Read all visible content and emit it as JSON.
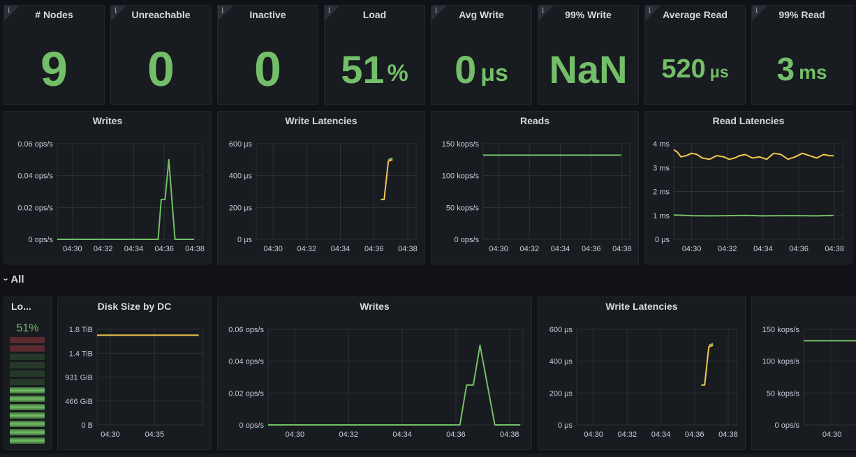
{
  "stats": [
    {
      "title": "# Nodes",
      "value": "9",
      "unit": ""
    },
    {
      "title": "Unreachable",
      "value": "0",
      "unit": ""
    },
    {
      "title": "Inactive",
      "value": "0",
      "unit": ""
    },
    {
      "title": "Load",
      "value": "51",
      "unit": "%"
    },
    {
      "title": "Avg Write",
      "value": "0",
      "unit": "μs"
    },
    {
      "title": "99% Write",
      "value": "NaN",
      "unit": ""
    },
    {
      "title": "Average Read",
      "value": "520",
      "unit": "μs"
    },
    {
      "title": "99% Read",
      "value": "3",
      "unit": "ms"
    }
  ],
  "info_glyph": "i",
  "row": {
    "label": "All",
    "chevron": "›"
  },
  "gauge": {
    "title": "Lo...",
    "value_text": "51%",
    "value": 0.51,
    "segments": 13
  },
  "colors": {
    "green": "#73bf69",
    "yellow": "#f2c94c",
    "red": "#5a2a30",
    "panel": "#181b1f",
    "grid": "#2c3037"
  },
  "chart_data": [
    {
      "id": "writes_top",
      "type": "line",
      "title": "Writes",
      "xlim": [
        0,
        9.5
      ],
      "ylim": [
        0,
        0.06
      ],
      "xticks": [
        {
          "v": 1,
          "l": "04:30"
        },
        {
          "v": 3,
          "l": "04:32"
        },
        {
          "v": 5,
          "l": "04:34"
        },
        {
          "v": 7,
          "l": "04:36"
        },
        {
          "v": 9,
          "l": "04:38"
        }
      ],
      "yticks": [
        {
          "v": 0,
          "l": "0 ops/s"
        },
        {
          "v": 0.02,
          "l": "0.02 ops/s"
        },
        {
          "v": 0.04,
          "l": "0.04 ops/s"
        },
        {
          "v": 0.06,
          "l": "0.06 ops/s"
        }
      ],
      "series": [
        {
          "color": "#73bf69",
          "x": [
            0,
            6.6,
            6.8,
            7.05,
            7.3,
            7.7,
            8.1,
            8.95
          ],
          "y": [
            0,
            0,
            0.025,
            0.025,
            0.05,
            0,
            0,
            0
          ]
        }
      ]
    },
    {
      "id": "write_lat_top",
      "type": "line",
      "title": "Write Latencies",
      "xlim": [
        0,
        9.5
      ],
      "ylim": [
        0,
        600
      ],
      "xticks": [
        {
          "v": 1,
          "l": "04:30"
        },
        {
          "v": 3,
          "l": "04:32"
        },
        {
          "v": 5,
          "l": "04:34"
        },
        {
          "v": 7,
          "l": "04:36"
        },
        {
          "v": 9,
          "l": "04:38"
        }
      ],
      "yticks": [
        {
          "v": 0,
          "l": "0 μs"
        },
        {
          "v": 200,
          "l": "200 μs"
        },
        {
          "v": 400,
          "l": "400 μs"
        },
        {
          "v": 600,
          "l": "600 μs"
        }
      ],
      "series": [
        {
          "color": "#f2c94c",
          "x": [
            7.4,
            7.6,
            7.85,
            8.1
          ],
          "y": [
            250,
            250,
            490,
            500
          ]
        },
        {
          "color": "#73bf69",
          "x": [
            7.85,
            8.1
          ],
          "y": [
            500,
            510
          ]
        }
      ]
    },
    {
      "id": "reads_top",
      "type": "line",
      "title": "Reads",
      "xlim": [
        0,
        9.5
      ],
      "ylim": [
        0,
        150
      ],
      "xticks": [
        {
          "v": 1,
          "l": "04:30"
        },
        {
          "v": 3,
          "l": "04:32"
        },
        {
          "v": 5,
          "l": "04:34"
        },
        {
          "v": 7,
          "l": "04:36"
        },
        {
          "v": 9,
          "l": "04:38"
        }
      ],
      "yticks": [
        {
          "v": 0,
          "l": "0 ops/s"
        },
        {
          "v": 50,
          "l": "50 kops/s"
        },
        {
          "v": 100,
          "l": "100 kops/s"
        },
        {
          "v": 150,
          "l": "150 kops/s"
        }
      ],
      "series": [
        {
          "color": "#73bf69",
          "x": [
            0,
            8.95
          ],
          "y": [
            132,
            132
          ]
        }
      ]
    },
    {
      "id": "read_lat_top",
      "type": "line",
      "title": "Read Latencies",
      "xlim": [
        0,
        9.5
      ],
      "ylim": [
        0,
        4
      ],
      "xticks": [
        {
          "v": 1,
          "l": "04:30"
        },
        {
          "v": 3,
          "l": "04:32"
        },
        {
          "v": 5,
          "l": "04:34"
        },
        {
          "v": 7,
          "l": "04:36"
        },
        {
          "v": 9,
          "l": "04:38"
        }
      ],
      "yticks": [
        {
          "v": 0,
          "l": "0 μs"
        },
        {
          "v": 1,
          "l": "1 ms"
        },
        {
          "v": 2,
          "l": "2 ms"
        },
        {
          "v": 3,
          "l": "3 ms"
        },
        {
          "v": 4,
          "l": "4 ms"
        }
      ],
      "series": [
        {
          "color": "#f2c94c",
          "x": [
            0,
            0.2,
            0.4,
            0.7,
            1,
            1.3,
            1.6,
            2,
            2.4,
            2.8,
            3.1,
            3.4,
            3.7,
            4,
            4.4,
            4.8,
            5.2,
            5.6,
            6,
            6.4,
            6.8,
            7.2,
            7.6,
            8,
            8.4,
            8.7,
            8.95
          ],
          "y": [
            3.75,
            3.65,
            3.45,
            3.5,
            3.6,
            3.55,
            3.4,
            3.35,
            3.5,
            3.45,
            3.35,
            3.4,
            3.5,
            3.55,
            3.4,
            3.45,
            3.35,
            3.6,
            3.55,
            3.35,
            3.45,
            3.6,
            3.5,
            3.4,
            3.55,
            3.5,
            3.5
          ]
        },
        {
          "color": "#73bf69",
          "x": [
            0,
            1,
            2,
            3,
            4,
            5,
            6,
            7,
            8,
            8.95
          ],
          "y": [
            1.02,
            0.99,
            0.98,
            0.99,
            1.0,
            0.98,
            0.99,
            0.99,
            0.98,
            1.0
          ]
        }
      ]
    },
    {
      "id": "disk",
      "type": "line",
      "title": "Disk Size by DC",
      "xlim": [
        0,
        12
      ],
      "ylim": [
        0,
        1.8
      ],
      "xticks": [
        {
          "v": 1.5,
          "l": "04:30"
        },
        {
          "v": 6.5,
          "l": "04:35"
        }
      ],
      "yticks": [
        {
          "v": 0,
          "l": "0 B"
        },
        {
          "v": 0.45,
          "l": "466 GiB"
        },
        {
          "v": 0.9,
          "l": "931 GiB"
        },
        {
          "v": 1.35,
          "l": "1.4 TiB"
        },
        {
          "v": 1.8,
          "l": "1.8 TiB"
        }
      ],
      "series": [
        {
          "color": "#f2c94c",
          "x": [
            0,
            11.5
          ],
          "y": [
            1.69,
            1.69
          ]
        }
      ]
    },
    {
      "id": "writes_bottom",
      "type": "line",
      "title": "Writes",
      "xlim": [
        0,
        9.5
      ],
      "ylim": [
        0,
        0.06
      ],
      "xticks": [
        {
          "v": 1,
          "l": "04:30"
        },
        {
          "v": 3,
          "l": "04:32"
        },
        {
          "v": 5,
          "l": "04:34"
        },
        {
          "v": 7,
          "l": "04:36"
        },
        {
          "v": 9,
          "l": "04:38"
        }
      ],
      "yticks": [
        {
          "v": 0,
          "l": "0 ops/s"
        },
        {
          "v": 0.02,
          "l": "0.02 ops/s"
        },
        {
          "v": 0.04,
          "l": "0.04 ops/s"
        },
        {
          "v": 0.06,
          "l": "0.06 ops/s"
        }
      ],
      "series": [
        {
          "color": "#73bf69",
          "x": [
            0,
            7.15,
            7.4,
            7.65,
            7.9,
            8.45,
            8.95,
            9.4
          ],
          "y": [
            0,
            0,
            0.025,
            0.025,
            0.05,
            0,
            0,
            0
          ]
        }
      ]
    },
    {
      "id": "write_lat_bottom",
      "type": "line",
      "title": "Write Latencies",
      "xlim": [
        0,
        9.5
      ],
      "ylim": [
        0,
        600
      ],
      "xticks": [
        {
          "v": 1,
          "l": "04:30"
        },
        {
          "v": 3,
          "l": "04:32"
        },
        {
          "v": 5,
          "l": "04:34"
        },
        {
          "v": 7,
          "l": "04:36"
        },
        {
          "v": 9,
          "l": "04:38"
        }
      ],
      "yticks": [
        {
          "v": 0,
          "l": "0 μs"
        },
        {
          "v": 200,
          "l": "200 μs"
        },
        {
          "v": 400,
          "l": "400 μs"
        },
        {
          "v": 600,
          "l": "600 μs"
        }
      ],
      "series": [
        {
          "color": "#f2c94c",
          "x": [
            7.4,
            7.6,
            7.85,
            8.1
          ],
          "y": [
            250,
            250,
            490,
            500
          ]
        },
        {
          "color": "#73bf69",
          "x": [
            7.85,
            8.1
          ],
          "y": [
            500,
            510
          ]
        }
      ]
    },
    {
      "id": "reads_bottom",
      "type": "line",
      "title": "",
      "xlim": [
        0,
        9.5
      ],
      "ylim": [
        0,
        150
      ],
      "xticks": [
        {
          "v": 1,
          "l": "04:30"
        }
      ],
      "yticks": [
        {
          "v": 0,
          "l": "0 ops/s"
        },
        {
          "v": 50,
          "l": "50 kops/s"
        },
        {
          "v": 100,
          "l": "100 kops/s"
        },
        {
          "v": 150,
          "l": "150 kops/s"
        }
      ],
      "series": [
        {
          "color": "#73bf69",
          "x": [
            0,
            9.5
          ],
          "y": [
            132,
            132
          ]
        }
      ]
    }
  ]
}
